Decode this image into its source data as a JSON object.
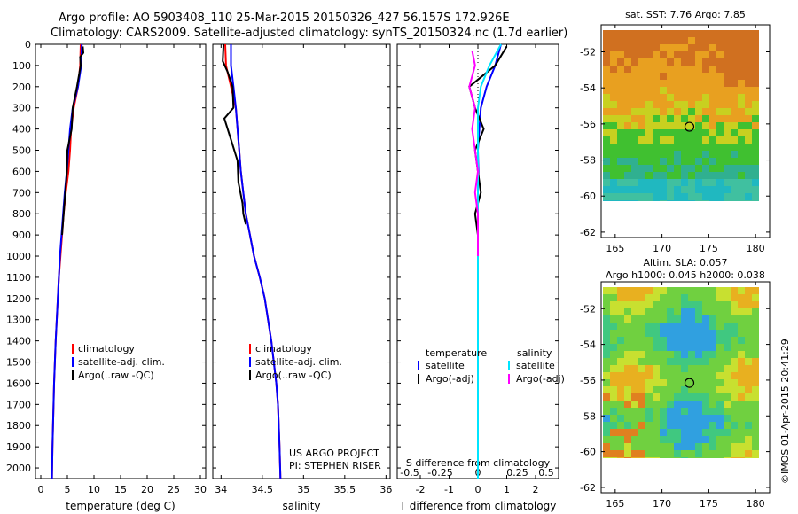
{
  "header": {
    "line1": "Argo profile: AO 5903408_110 25-Mar-2015 20150326_427 56.157S 172.926E",
    "line2": "Climatology: CARS2009. Satellite-adjusted climatology: synTS_20150324.nc (1.7d earlier)"
  },
  "colors": {
    "climatology": "#ff0000",
    "satellite": "#0000ff",
    "argo": "#000000",
    "sat_sal": "#00e5ff",
    "argo_sal": "#ff00ff"
  },
  "chart_data": [
    {
      "type": "line",
      "name": "temperature-profile",
      "xlabel": "temperature (deg C)",
      "ylabel": "",
      "xlim": [
        -1,
        31
      ],
      "ylim": [
        2050,
        0
      ],
      "xticks": [
        0,
        5,
        10,
        15,
        20,
        25,
        30
      ],
      "yticks": [
        0,
        100,
        200,
        300,
        400,
        500,
        600,
        700,
        800,
        900,
        1000,
        1100,
        1200,
        1300,
        1400,
        1500,
        1600,
        1700,
        1800,
        1900,
        2000
      ],
      "legend": [
        "climatology",
        "satellite-adj. clim.",
        "Argo(..raw -QC)"
      ],
      "legend_position": "lower-center",
      "series": [
        {
          "name": "climatology",
          "color": "#ff0000",
          "x": [
            7.5,
            7.4,
            7.0,
            6.2,
            5.7,
            5.5,
            5.2,
            4.7,
            4.3,
            4.0,
            3.7,
            3.4,
            3.2,
            3.0,
            2.8,
            2.65,
            2.5,
            2.4,
            2.3,
            2.2,
            2.1
          ],
          "y": [
            0,
            100,
            200,
            300,
            400,
            500,
            600,
            700,
            800,
            900,
            1000,
            1100,
            1200,
            1300,
            1400,
            1500,
            1600,
            1700,
            1800,
            1900,
            2050
          ]
        },
        {
          "name": "satellite-adj. clim.",
          "color": "#0000ff",
          "x": [
            7.7,
            7.6,
            7.0,
            6.0,
            5.5,
            5.2,
            4.9,
            4.5,
            4.2,
            3.9,
            3.6,
            3.4,
            3.2,
            3.0,
            2.8,
            2.65,
            2.5,
            2.4,
            2.3,
            2.2,
            2.1
          ],
          "y": [
            0,
            100,
            200,
            300,
            400,
            500,
            600,
            700,
            800,
            900,
            1000,
            1100,
            1200,
            1300,
            1400,
            1500,
            1600,
            1700,
            1800,
            1900,
            2050
          ]
        },
        {
          "name": "Argo(..raw -QC)",
          "color": "#000000",
          "x": [
            7.9,
            8.0,
            7.4,
            7.5,
            6.8,
            6.0,
            5.8,
            5.0,
            4.9,
            4.6,
            4.3,
            4.0
          ],
          "y": [
            10,
            40,
            60,
            100,
            200,
            300,
            400,
            500,
            600,
            700,
            800,
            900
          ]
        }
      ]
    },
    {
      "type": "line",
      "name": "salinity-profile",
      "xlabel": "salinity",
      "xlim": [
        33.9,
        36.05
      ],
      "ylim": [
        2050,
        0
      ],
      "xticks": [
        34,
        34.5,
        35,
        35.5,
        36
      ],
      "legend": [
        "climatology",
        "satellite-adj. clim.",
        "Argo(..raw -QC)"
      ],
      "legend_position": "lower-center",
      "annotation": [
        "US ARGO PROJECT",
        "PI: STEPHEN RISER"
      ],
      "series": [
        {
          "name": "climatology",
          "color": "#ff0000",
          "x": [
            34.05,
            34.06,
            34.12,
            34.18,
            34.2,
            34.22,
            34.24,
            34.27,
            34.3,
            34.35,
            34.4,
            34.47,
            34.53,
            34.57,
            34.61,
            34.64,
            34.67,
            34.69,
            34.7,
            34.71,
            34.72
          ],
          "y": [
            0,
            100,
            200,
            300,
            400,
            500,
            600,
            700,
            800,
            900,
            1000,
            1100,
            1200,
            1300,
            1400,
            1500,
            1600,
            1700,
            1800,
            1900,
            2050
          ]
        },
        {
          "name": "satellite-adj. clim.",
          "color": "#0000ff",
          "x": [
            34.12,
            34.12,
            34.15,
            34.18,
            34.2,
            34.22,
            34.24,
            34.27,
            34.3,
            34.35,
            34.4,
            34.47,
            34.53,
            34.57,
            34.61,
            34.64,
            34.67,
            34.69,
            34.7,
            34.71,
            34.72
          ],
          "y": [
            0,
            100,
            200,
            300,
            400,
            500,
            600,
            700,
            800,
            900,
            1000,
            1100,
            1200,
            1300,
            1400,
            1500,
            1600,
            1700,
            1800,
            1900,
            2050
          ]
        },
        {
          "name": "Argo(..raw -QC)",
          "color": "#000000",
          "x": [
            34.03,
            34.02,
            34.08,
            34.14,
            34.15,
            34.04,
            34.12,
            34.2,
            34.21,
            34.26,
            34.27,
            34.3
          ],
          "y": [
            0,
            80,
            130,
            200,
            300,
            350,
            450,
            550,
            650,
            750,
            800,
            850
          ]
        }
      ]
    },
    {
      "type": "line",
      "name": "difference-profile",
      "xlabel": "T difference from climatology",
      "xlabel_top": "S difference from climatology",
      "xlim": [
        -2.8,
        2.8
      ],
      "ylim": [
        2050,
        0
      ],
      "xticks": [
        -2,
        -1,
        0,
        1,
        2
      ],
      "xticks_s": [
        "-0.5",
        "-0.25",
        "0",
        "0.25",
        "0.5"
      ],
      "legend_titles": [
        "temperature",
        "salinity"
      ],
      "legend": [
        "satellite",
        "Argo(-adj)",
        "satellite",
        "Argo(-adj)"
      ],
      "legend_position": "lower-center",
      "series": [
        {
          "name": "temperature satellite",
          "color": "#0000ff",
          "x": [
            0.8,
            0.6,
            0.3,
            0.1,
            0.05,
            0.0,
            0.02,
            0.0,
            0.0,
            0.0,
            0.0,
            0.0,
            0.0,
            0.0,
            0.0,
            0.0,
            0.0,
            0.0,
            0.0,
            0.0,
            0.0
          ],
          "y": [
            0,
            100,
            200,
            300,
            400,
            500,
            600,
            700,
            800,
            900,
            1000,
            1100,
            1200,
            1300,
            1400,
            1500,
            1600,
            1700,
            1800,
            1900,
            2050
          ]
        },
        {
          "name": "temperature Argo(-adj)",
          "color": "#000000",
          "x": [
            1.0,
            0.6,
            -0.3,
            -0.1,
            0.2,
            -0.1,
            0.0,
            0.1,
            -0.1,
            0.0,
            0.0,
            0.0
          ],
          "y": [
            10,
            100,
            200,
            300,
            400,
            500,
            600,
            700,
            800,
            900,
            1000,
            1100
          ]
        },
        {
          "name": "salinity satellite",
          "color": "#00e5ff",
          "x": [
            0.8,
            0.4,
            0.1,
            0.0,
            0.0,
            0.0,
            0.0,
            0.0,
            0.0,
            0.0,
            0.0,
            0.0,
            0.0,
            0.0,
            0.0,
            0.0,
            0.0,
            0.0,
            0.0,
            0.0,
            0.0
          ],
          "y": [
            0,
            100,
            200,
            300,
            400,
            500,
            600,
            700,
            800,
            900,
            1000,
            1100,
            1200,
            1300,
            1400,
            1500,
            1600,
            1700,
            1800,
            1900,
            2050
          ]
        },
        {
          "name": "salinity Argo(-adj)",
          "color": "#ff00ff",
          "x": [
            -0.2,
            -0.1,
            -0.3,
            -0.1,
            -0.2,
            -0.1,
            0.0,
            -0.1,
            0.0,
            0.0,
            0.0
          ],
          "y": [
            30,
            100,
            200,
            300,
            400,
            500,
            600,
            700,
            800,
            900,
            1000
          ]
        }
      ]
    },
    {
      "type": "heatmap",
      "name": "sst-map",
      "title": "sat. SST: 7.76 Argo: 7.85",
      "xlim": [
        163.5,
        181.5
      ],
      "ylim": [
        -62.3,
        -50.5
      ],
      "xticks": [
        165,
        170,
        175,
        180
      ],
      "yticks": [
        -52,
        -54,
        -56,
        -58,
        -60,
        -62
      ],
      "marker": {
        "lon": 172.926,
        "lat": -56.157
      }
    },
    {
      "type": "heatmap",
      "name": "sla-map",
      "title": "Altim. SLA: 0.057",
      "subtitle": "Argo h1000: 0.045 h2000: 0.038",
      "xlim": [
        163.5,
        181.5
      ],
      "ylim": [
        -62.3,
        -50.5
      ],
      "xticks": [
        165,
        170,
        175,
        180
      ],
      "yticks": [
        -52,
        -54,
        -56,
        -58,
        -60,
        -62
      ],
      "marker": {
        "lon": 172.926,
        "lat": -56.157
      }
    }
  ],
  "footer": {
    "stamp": "©IMOS 01-Apr-2015 20:41:29"
  }
}
